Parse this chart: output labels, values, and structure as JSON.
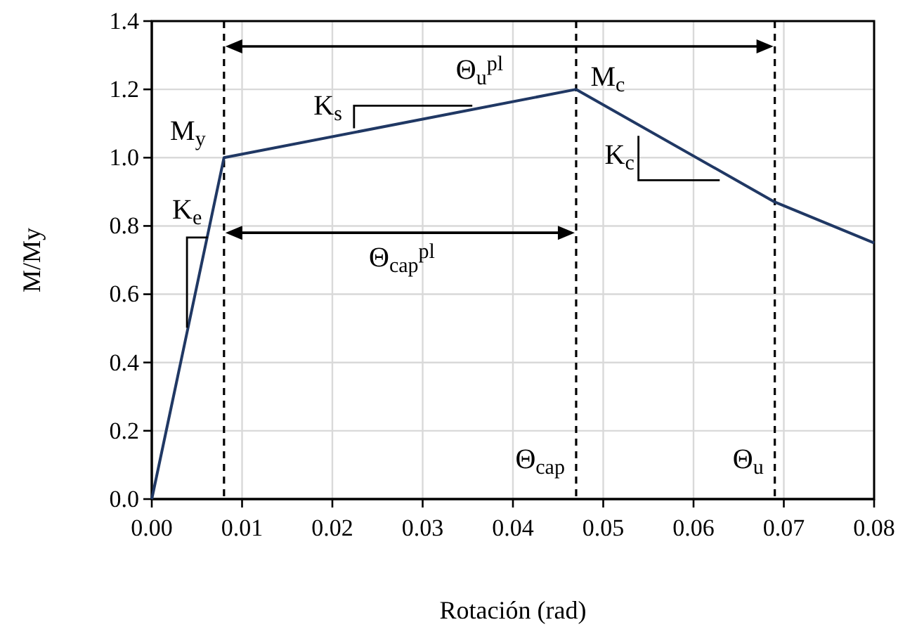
{
  "chart_data": {
    "type": "line",
    "xlabel": "Rotación (rad)",
    "ylabel": "M/My",
    "x": [
      0,
      0.008,
      0.047,
      0.069,
      0.08
    ],
    "series": [
      {
        "color": "#203864",
        "values": [
          0,
          1.0,
          1.2,
          0.87,
          0.75
        ]
      }
    ],
    "xlim": [
      0,
      0.08
    ],
    "ylim": [
      0,
      1.4
    ],
    "xticks": [
      {
        "value": 0,
        "label": "0.00"
      },
      {
        "value": 0.01,
        "label": "0.01"
      },
      {
        "value": 0.02,
        "label": "0.02"
      },
      {
        "value": 0.03,
        "label": "0.03"
      },
      {
        "value": 0.04,
        "label": "0.04"
      },
      {
        "value": 0.05,
        "label": "0.05"
      },
      {
        "value": 0.06,
        "label": "0.06"
      },
      {
        "value": 0.07,
        "label": "0.07"
      },
      {
        "value": 0.08,
        "label": "0.08"
      }
    ],
    "yticks": [
      {
        "value": 0,
        "label": "0.0"
      },
      {
        "value": 0.2,
        "label": "0.2"
      },
      {
        "value": 0.4,
        "label": "0.4"
      },
      {
        "value": 0.6,
        "label": "0.6"
      },
      {
        "value": 0.8,
        "label": "0.8"
      },
      {
        "value": 1.0,
        "label": "1.0"
      },
      {
        "value": 1.2,
        "label": "1.2"
      },
      {
        "value": 1.4,
        "label": "1.4"
      }
    ],
    "grid": true,
    "marker": "none",
    "line_style": "solid",
    "ref_lines": [
      {
        "axis": "x",
        "value": 0.008,
        "line_style": "dashed",
        "color": "#000000"
      },
      {
        "axis": "x",
        "value": 0.047,
        "label": "Θ$_{cap}$",
        "line_style": "dashed",
        "color": "#000000"
      },
      {
        "axis": "x",
        "value": 0.069,
        "label": "Θ$_{u}$",
        "line_style": "dashed",
        "color": "#000000"
      }
    ],
    "annotations": [
      "Θ$_{u}$$^{pl}$",
      "M$_{c}$",
      "M$_{y}$",
      {
        "text": "K$_{s}$",
        "x": 0.0355,
        "y": 1.141
      },
      "K$_{c}$",
      {
        "text": "K$_{e}$",
        "x": 0.0062,
        "y": 0.775
      },
      "Θ$_{cap}$$^{pl}$"
    ]
  }
}
